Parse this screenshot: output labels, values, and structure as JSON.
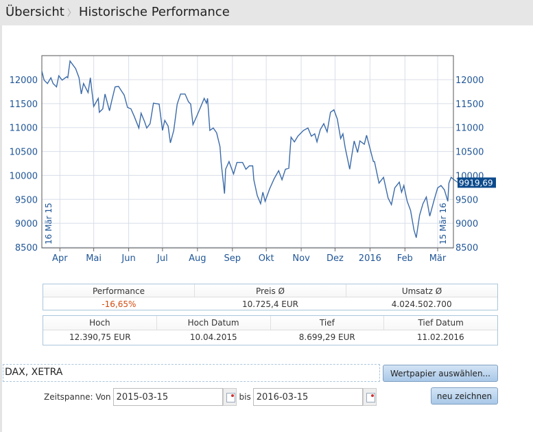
{
  "header": {
    "crumb1": "Übersicht",
    "separator": "〉",
    "crumb2": "Historische Performance"
  },
  "chart_data": {
    "type": "line",
    "ylim": [
      8500,
      12500
    ],
    "y_ticks": [
      "12000",
      "11500",
      "11000",
      "10500",
      "10000",
      "9500",
      "9000",
      "8500"
    ],
    "x_ticks": [
      "Apr",
      "Mai",
      "Jun",
      "Jul",
      "Aug",
      "Sep",
      "Okt",
      "Nov",
      "Dez",
      "2016",
      "Feb",
      "Mär"
    ],
    "start_label": "16 Mär 15",
    "end_label": "15 Mär 16",
    "last_value_label": "9919,69",
    "grid": true,
    "color": "#3a6aa8",
    "points": [
      [
        "2015-03-16",
        12180
      ],
      [
        "2015-03-18",
        11990
      ],
      [
        "2015-03-21",
        11920
      ],
      [
        "2015-03-24",
        12040
      ],
      [
        "2015-03-26",
        11920
      ],
      [
        "2015-03-29",
        11850
      ],
      [
        "2015-03-31",
        12080
      ],
      [
        "2015-04-03",
        11990
      ],
      [
        "2015-04-07",
        12060
      ],
      [
        "2015-04-08",
        12040
      ],
      [
        "2015-04-10",
        12390
      ],
      [
        "2015-04-15",
        12230
      ],
      [
        "2015-04-18",
        12040
      ],
      [
        "2015-04-20",
        11700
      ],
      [
        "2015-04-22",
        11920
      ],
      [
        "2015-04-26",
        11730
      ],
      [
        "2015-04-28",
        12040
      ],
      [
        "2015-05-01",
        11440
      ],
      [
        "2015-05-05",
        11610
      ],
      [
        "2015-05-06",
        11320
      ],
      [
        "2015-05-09",
        11390
      ],
      [
        "2015-05-11",
        11700
      ],
      [
        "2015-05-15",
        11350
      ],
      [
        "2015-05-17",
        11560
      ],
      [
        "2015-05-20",
        11850
      ],
      [
        "2015-05-23",
        11860
      ],
      [
        "2015-05-26",
        11750
      ],
      [
        "2015-05-28",
        11680
      ],
      [
        "2015-05-31",
        11420
      ],
      [
        "2015-06-03",
        11390
      ],
      [
        "2015-06-06",
        11230
      ],
      [
        "2015-06-10",
        10990
      ],
      [
        "2015-06-12",
        11300
      ],
      [
        "2015-06-15",
        11130
      ],
      [
        "2015-06-17",
        10990
      ],
      [
        "2015-06-20",
        11080
      ],
      [
        "2015-06-23",
        11510
      ],
      [
        "2015-06-28",
        11490
      ],
      [
        "2015-07-01",
        10940
      ],
      [
        "2015-07-03",
        11150
      ],
      [
        "2015-07-06",
        11030
      ],
      [
        "2015-07-08",
        10680
      ],
      [
        "2015-07-11",
        10940
      ],
      [
        "2015-07-14",
        11490
      ],
      [
        "2015-07-17",
        11700
      ],
      [
        "2015-07-21",
        11700
      ],
      [
        "2015-07-24",
        11540
      ],
      [
        "2015-07-26",
        11490
      ],
      [
        "2015-07-28",
        11060
      ],
      [
        "2015-08-01",
        11270
      ],
      [
        "2015-08-04",
        11440
      ],
      [
        "2015-08-07",
        11610
      ],
      [
        "2015-08-09",
        11510
      ],
      [
        "2015-08-10",
        11610
      ],
      [
        "2015-08-12",
        10940
      ],
      [
        "2015-08-15",
        10990
      ],
      [
        "2015-08-18",
        10890
      ],
      [
        "2015-08-21",
        10600
      ],
      [
        "2015-08-22",
        10270
      ],
      [
        "2015-08-25",
        9620
      ],
      [
        "2015-08-26",
        10130
      ],
      [
        "2015-08-29",
        10290
      ],
      [
        "2015-09-02",
        10030
      ],
      [
        "2015-09-05",
        10270
      ],
      [
        "2015-09-10",
        10270
      ],
      [
        "2015-09-13",
        10130
      ],
      [
        "2015-09-16",
        10200
      ],
      [
        "2015-09-19",
        10200
      ],
      [
        "2015-09-20",
        9910
      ],
      [
        "2015-09-23",
        9580
      ],
      [
        "2015-09-26",
        9410
      ],
      [
        "2015-09-28",
        9650
      ],
      [
        "2015-09-30",
        9460
      ],
      [
        "2015-10-04",
        9720
      ],
      [
        "2015-10-08",
        9930
      ],
      [
        "2015-10-12",
        10100
      ],
      [
        "2015-10-15",
        9910
      ],
      [
        "2015-10-18",
        10130
      ],
      [
        "2015-10-21",
        10150
      ],
      [
        "2015-10-23",
        10800
      ],
      [
        "2015-10-26",
        10700
      ],
      [
        "2015-10-29",
        10820
      ],
      [
        "2015-11-03",
        10940
      ],
      [
        "2015-11-07",
        10990
      ],
      [
        "2015-11-10",
        10820
      ],
      [
        "2015-11-13",
        10870
      ],
      [
        "2015-11-15",
        10700
      ],
      [
        "2015-11-18",
        10960
      ],
      [
        "2015-11-21",
        11080
      ],
      [
        "2015-11-24",
        10910
      ],
      [
        "2015-11-27",
        11320
      ],
      [
        "2015-11-30",
        11370
      ],
      [
        "2015-12-03",
        11180
      ],
      [
        "2015-12-06",
        10770
      ],
      [
        "2015-12-08",
        10870
      ],
      [
        "2015-12-10",
        10580
      ],
      [
        "2015-12-14",
        10130
      ],
      [
        "2015-12-16",
        10440
      ],
      [
        "2015-12-18",
        10720
      ],
      [
        "2015-12-21",
        10480
      ],
      [
        "2015-12-23",
        10720
      ],
      [
        "2015-12-27",
        10650
      ],
      [
        "2015-12-29",
        10840
      ],
      [
        "2016-01-04",
        10290
      ],
      [
        "2016-01-05",
        10290
      ],
      [
        "2016-01-09",
        9840
      ],
      [
        "2016-01-13",
        9960
      ],
      [
        "2016-01-17",
        9530
      ],
      [
        "2016-01-20",
        9390
      ],
      [
        "2016-01-23",
        9740
      ],
      [
        "2016-01-27",
        9860
      ],
      [
        "2016-01-29",
        9650
      ],
      [
        "2016-01-31",
        9790
      ],
      [
        "2016-02-03",
        9460
      ],
      [
        "2016-02-06",
        9270
      ],
      [
        "2016-02-09",
        8860
      ],
      [
        "2016-02-11",
        8699
      ],
      [
        "2016-02-14",
        9170
      ],
      [
        "2016-02-17",
        9410
      ],
      [
        "2016-02-20",
        9550
      ],
      [
        "2016-02-23",
        9150
      ],
      [
        "2016-02-27",
        9500
      ],
      [
        "2016-03-01",
        9740
      ],
      [
        "2016-03-04",
        9790
      ],
      [
        "2016-03-07",
        9700
      ],
      [
        "2016-03-10",
        9460
      ],
      [
        "2016-03-11",
        9840
      ],
      [
        "2016-03-13",
        9960
      ],
      [
        "2016-03-15",
        9920
      ]
    ]
  },
  "stats1": {
    "headers": [
      "Performance",
      "Preis Ø",
      "Umsatz Ø"
    ],
    "values": [
      "-16,65%",
      "10.725,4 EUR",
      "4.024.502.700"
    ]
  },
  "stats2": {
    "headers": [
      "Hoch",
      "Hoch Datum",
      "Tief",
      "Tief Datum"
    ],
    "values": [
      "12.390,75 EUR",
      "10.04.2015",
      "8.699,29 EUR",
      "11.02.2016"
    ]
  },
  "colors": {
    "negative": "#d24a10",
    "accent": "#0b4a8c"
  },
  "security": {
    "value": "DAX, XETRA",
    "select_button": "Wertpapier auswählen..."
  },
  "range": {
    "label": "Zeitspanne: Von",
    "from": "2015-03-15",
    "to_label": "bis",
    "to": "2016-03-15",
    "redraw_button": "neu zeichnen"
  }
}
